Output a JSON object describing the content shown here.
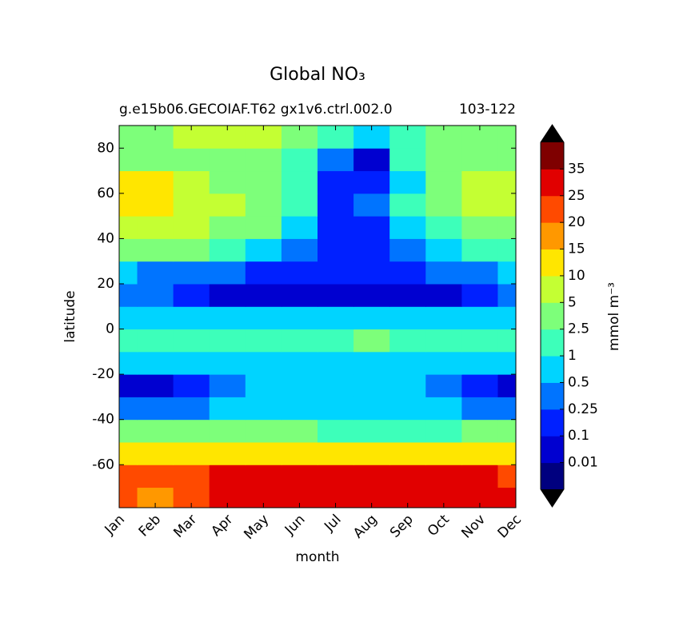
{
  "chart_data": {
    "type": "contourf",
    "title": "Global NO₃",
    "subtitle_left": "g.e15b06.GECOIAF.T62 gx1v6.ctrl.002.0",
    "subtitle_right": "103-122",
    "x_label": "month",
    "y_label": "latitude",
    "colorbar_label": "mmol m⁻³",
    "categories": [
      "Jan",
      "Feb",
      "Mar",
      "Apr",
      "May",
      "Jun",
      "Jul",
      "Aug",
      "Sep",
      "Oct",
      "Nov",
      "Dec"
    ],
    "ylim": [
      -79,
      90
    ],
    "yticks": [
      -60,
      -40,
      -20,
      0,
      20,
      40,
      60,
      80
    ],
    "latitudes": [
      -75,
      -65,
      -55,
      -45,
      -35,
      -25,
      -15,
      -5,
      5,
      15,
      25,
      35,
      45,
      55,
      65,
      75,
      85
    ],
    "z": [
      [
        22,
        17,
        22,
        27,
        27,
        27,
        27,
        27,
        27,
        27,
        27,
        27
      ],
      [
        22,
        22,
        22,
        27,
        27,
        27,
        27,
        27,
        27,
        27,
        27,
        22
      ],
      [
        12,
        12,
        12,
        12,
        12,
        12,
        12,
        12,
        12,
        12,
        12,
        12
      ],
      [
        3,
        3,
        3,
        3,
        3,
        3,
        2,
        2,
        2,
        2,
        3,
        3
      ],
      [
        0.3,
        0.3,
        0.3,
        0.7,
        0.7,
        0.7,
        0.7,
        0.7,
        0.7,
        0.7,
        0.3,
        0.3
      ],
      [
        0.05,
        0.05,
        0.2,
        0.3,
        0.7,
        0.7,
        0.7,
        0.7,
        0.7,
        0.3,
        0.2,
        0.05
      ],
      [
        0.7,
        0.7,
        0.7,
        0.7,
        0.7,
        0.7,
        0.7,
        0.7,
        0.7,
        0.7,
        0.7,
        0.7
      ],
      [
        1.5,
        1.5,
        1.5,
        1.5,
        1.5,
        1.5,
        1.5,
        3,
        1.5,
        1.5,
        1.5,
        1.5
      ],
      [
        0.7,
        0.7,
        0.7,
        0.7,
        0.7,
        0.7,
        0.7,
        0.7,
        0.7,
        0.7,
        0.7,
        0.7
      ],
      [
        0.3,
        0.3,
        0.2,
        0.05,
        0.05,
        0.05,
        0.05,
        0.05,
        0.05,
        0.05,
        0.2,
        0.3
      ],
      [
        0.7,
        0.3,
        0.3,
        0.3,
        0.2,
        0.2,
        0.2,
        0.2,
        0.2,
        0.3,
        0.3,
        0.7
      ],
      [
        3,
        3,
        3,
        1.5,
        0.7,
        0.3,
        0.2,
        0.2,
        0.3,
        0.7,
        1.5,
        2
      ],
      [
        7,
        7,
        7,
        4,
        3,
        0.7,
        0.2,
        0.2,
        0.7,
        2,
        4,
        4
      ],
      [
        12,
        12,
        7,
        7,
        4,
        1.5,
        0.2,
        0.3,
        1.5,
        3,
        7,
        7
      ],
      [
        12,
        12,
        7,
        4,
        3,
        1.5,
        0.2,
        0.2,
        0.7,
        4,
        7,
        7
      ],
      [
        3,
        3,
        3,
        3,
        3,
        2,
        0.3,
        0.05,
        1.5,
        3,
        3,
        3
      ],
      [
        3,
        3,
        6,
        6,
        6,
        3,
        2,
        0.7,
        2,
        3,
        3,
        3
      ]
    ],
    "levels": [
      0.01,
      0.1,
      0.25,
      0.5,
      1,
      2.5,
      5,
      10,
      15,
      20,
      25,
      35
    ],
    "colors": [
      "#00007f",
      "#0000d0",
      "#0020ff",
      "#0074ff",
      "#00d4ff",
      "#3dffba",
      "#7dff7a",
      "#c4ff33",
      "#ffe600",
      "#ff9800",
      "#ff4a00",
      "#e10000",
      "#7f0000"
    ],
    "extend_color": "#000000"
  }
}
